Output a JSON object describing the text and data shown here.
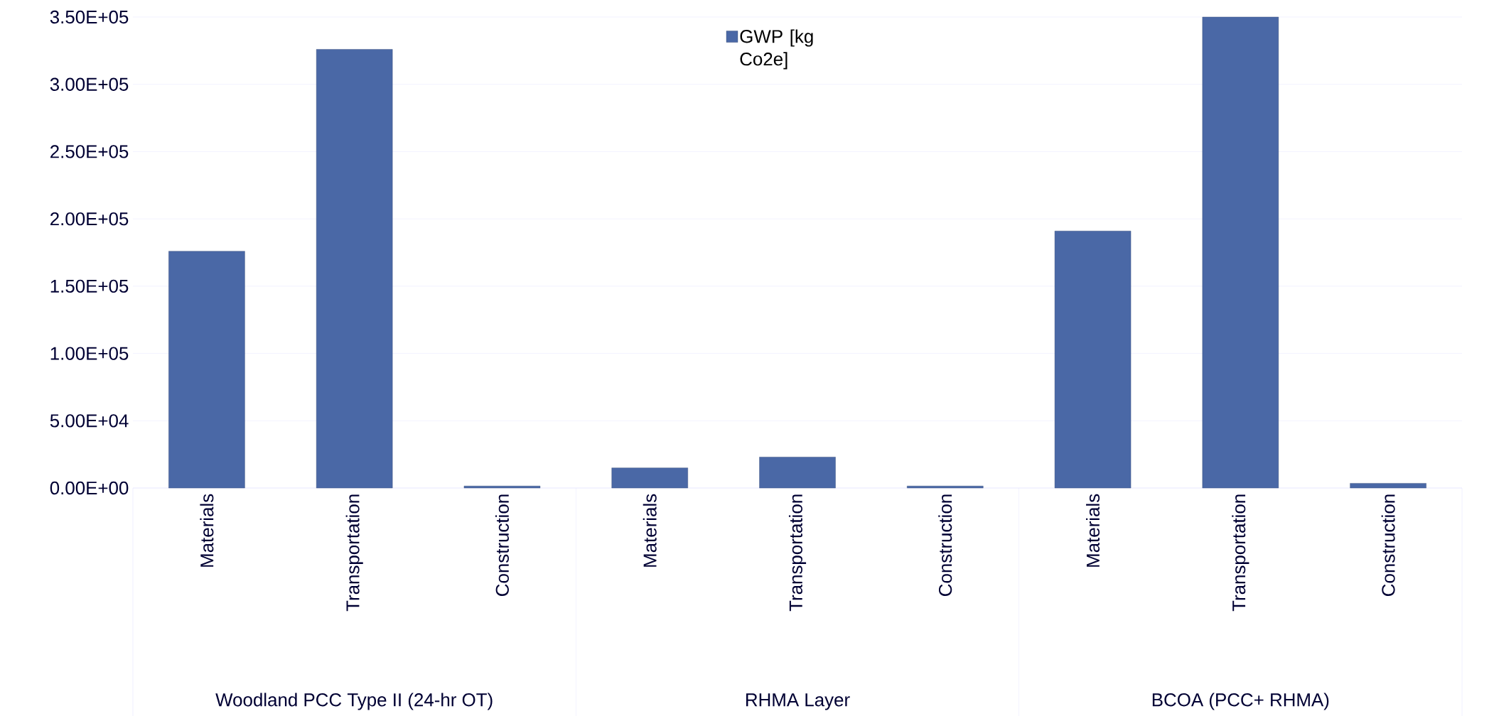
{
  "chart_data": {
    "type": "bar",
    "categories": [
      "Materials",
      "Transportation",
      "Construction",
      "Materials",
      "Transportation",
      "Construction",
      "Materials",
      "Transportation",
      "Construction"
    ],
    "series": [
      {
        "name": "GWP [kg Co2e]",
        "color": "#4a68a6",
        "values": [
          176000,
          326000,
          1500,
          15000,
          23000,
          1500,
          191000,
          350000,
          3500
        ]
      }
    ],
    "ylim": [
      0,
      350000
    ],
    "yticks": [
      {
        "value": 0,
        "label": "0.00E+00"
      },
      {
        "value": 50000,
        "label": "5.00E+04"
      },
      {
        "value": 100000,
        "label": "1.00E+05"
      },
      {
        "value": 150000,
        "label": "1.50E+05"
      },
      {
        "value": 200000,
        "label": "2.00E+05"
      },
      {
        "value": 250000,
        "label": "2.50E+05"
      },
      {
        "value": 300000,
        "label": "3.00E+05"
      },
      {
        "value": 350000,
        "label": "3.50E+05"
      }
    ],
    "annotations": [
      "Woodland PCC Type II (24-hr OT)",
      "RHMA Layer",
      "BCOA (PCC+ RHMA)"
    ],
    "grid": "y",
    "legend": "top"
  }
}
